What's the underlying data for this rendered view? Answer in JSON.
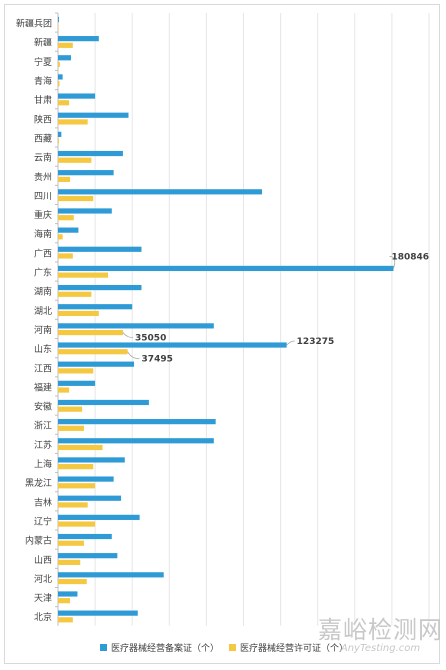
{
  "chart_data": {
    "type": "bar",
    "orientation": "horizontal",
    "categories": [
      "新疆兵团",
      "新疆",
      "宁夏",
      "青海",
      "甘肃",
      "陕西",
      "西藏",
      "云南",
      "贵州",
      "四川",
      "重庆",
      "海南",
      "广西",
      "广东",
      "湖南",
      "湖北",
      "河南",
      "山东",
      "江西",
      "福建",
      "安徽",
      "浙江",
      "江苏",
      "上海",
      "黑龙江",
      "吉林",
      "辽宁",
      "内蒙古",
      "山西",
      "河北",
      "天津",
      "北京"
    ],
    "series": [
      {
        "name": "医疗器械经营备案证（个）",
        "color": "#2e9bd6",
        "values": [
          500,
          22000,
          7000,
          2500,
          20000,
          38000,
          1800,
          35000,
          30000,
          110000,
          29000,
          11000,
          45000,
          180846,
          45000,
          40000,
          84000,
          123275,
          41000,
          20000,
          49000,
          85000,
          84000,
          36000,
          30000,
          34000,
          44000,
          29000,
          32000,
          57000,
          10500,
          43000
        ]
      },
      {
        "name": "医疗器械经营许可证（个）",
        "color": "#f5c842",
        "values": [
          300,
          8000,
          1000,
          800,
          6000,
          16000,
          500,
          18000,
          6500,
          19000,
          8500,
          2500,
          8000,
          27000,
          18000,
          22000,
          35050,
          37495,
          19000,
          6000,
          13000,
          14000,
          24000,
          19000,
          20000,
          16000,
          20000,
          14000,
          12000,
          15500,
          6500,
          8000
        ]
      }
    ],
    "data_labels": [
      {
        "category": "广东",
        "series": 0,
        "text": "180846"
      },
      {
        "category": "河南",
        "series": 1,
        "text": "35050"
      },
      {
        "category": "山东",
        "series": 0,
        "text": "123275"
      },
      {
        "category": "山东",
        "series": 1,
        "text": "37495"
      }
    ],
    "xlim": [
      0,
      200000
    ],
    "grid": true,
    "legend_position": "bottom"
  },
  "legend": {
    "items": [
      {
        "label": "医疗器械经营备案证（个）",
        "color": "#2e9bd6"
      },
      {
        "label": "医疗器械经营许可证（个）",
        "color": "#f5c842"
      }
    ]
  },
  "watermark": {
    "cn": "嘉峪检测网",
    "en": "AnyTesting.com"
  }
}
